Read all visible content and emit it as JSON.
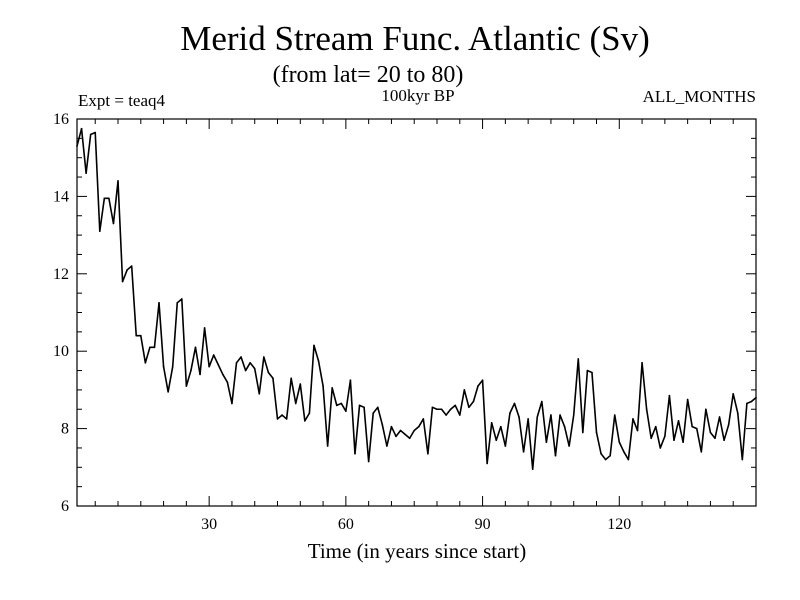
{
  "chart_data": {
    "type": "line",
    "title": "Merid Stream Func. Atlantic (Sv)",
    "subtitle": "(from lat= 20 to 80)",
    "annotation_left": "Expt = teaq4",
    "annotation_center": "100kyr BP",
    "annotation_right": "ALL_MONTHS",
    "xlabel": "Time (in years since start)",
    "ylabel": "",
    "xlim": [
      1,
      150
    ],
    "ylim": [
      6,
      16
    ],
    "xticks": [
      30,
      60,
      90,
      120
    ],
    "yticks": [
      6,
      8,
      10,
      12,
      14,
      16
    ],
    "x_minor_step": 5,
    "y_minor_step": 0.5,
    "grid": false,
    "line_color": "#000000",
    "series": [
      {
        "name": "teaq4",
        "x_start": 1,
        "x_step": 1,
        "values": [
          15.3,
          15.75,
          14.6,
          15.6,
          15.65,
          13.1,
          13.95,
          13.95,
          13.3,
          14.4,
          11.8,
          12.1,
          12.2,
          10.4,
          10.4,
          9.7,
          10.1,
          10.1,
          11.25,
          9.6,
          8.95,
          9.6,
          11.25,
          11.35,
          9.1,
          9.5,
          10.1,
          9.4,
          10.6,
          9.6,
          9.9,
          9.65,
          9.4,
          9.2,
          8.65,
          9.7,
          9.85,
          9.5,
          9.7,
          9.55,
          8.9,
          9.85,
          9.45,
          9.3,
          8.25,
          8.35,
          8.25,
          9.3,
          8.65,
          9.15,
          8.2,
          8.4,
          10.15,
          9.75,
          9.1,
          7.55,
          9.05,
          8.6,
          8.65,
          8.45,
          9.25,
          7.35,
          8.6,
          8.55,
          7.15,
          8.4,
          8.55,
          8.1,
          7.55,
          8.05,
          7.8,
          7.95,
          7.85,
          7.75,
          7.95,
          8.05,
          8.25,
          7.35,
          8.55,
          8.5,
          8.5,
          8.35,
          8.5,
          8.6,
          8.35,
          9.0,
          8.55,
          8.7,
          9.1,
          9.25,
          7.1,
          8.15,
          7.7,
          8.05,
          7.55,
          8.4,
          8.65,
          8.3,
          7.4,
          8.25,
          6.95,
          8.3,
          8.7,
          7.65,
          8.35,
          7.3,
          8.35,
          8.05,
          7.55,
          8.35,
          9.8,
          7.9,
          9.5,
          9.45,
          7.9,
          7.35,
          7.2,
          7.3,
          8.35,
          7.65,
          7.4,
          7.2,
          8.25,
          7.95,
          9.7,
          8.5,
          7.75,
          8.05,
          7.5,
          7.8,
          8.85,
          7.7,
          8.2,
          7.65,
          8.75,
          8.05,
          8.0,
          7.4,
          8.5,
          7.9,
          7.75,
          8.3,
          7.7,
          8.1,
          8.9,
          8.4,
          7.2,
          8.65,
          8.7,
          8.8
        ]
      }
    ]
  }
}
